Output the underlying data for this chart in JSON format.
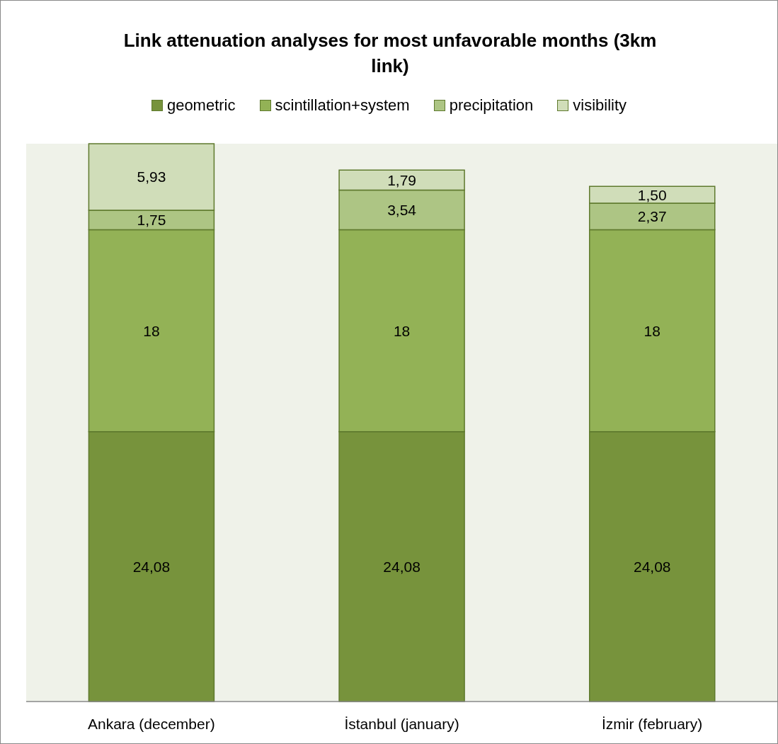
{
  "chart_data": {
    "type": "bar",
    "title": "Link attenuation analyses for most unfavorable months (3km link)",
    "categories": [
      "Ankara (december)",
      "İstanbul (january)",
      "İzmir (february)"
    ],
    "stacked": true,
    "legend": "top",
    "data_labels": true,
    "series": [
      {
        "name": "geometric",
        "color": "#77933c",
        "values": [
          24.08,
          24.08,
          24.08
        ],
        "value_labels": [
          "24,08",
          "24,08",
          "24,08"
        ]
      },
      {
        "name": "scintillation+system",
        "color": "#93b256",
        "values": [
          18,
          18,
          18
        ],
        "value_labels": [
          "18",
          "18",
          "18"
        ]
      },
      {
        "name": "precipitation",
        "color": "#adc584",
        "values": [
          1.75,
          3.54,
          2.37
        ],
        "value_labels": [
          "1,75",
          "3,54",
          "2,37"
        ]
      },
      {
        "name": "visibility",
        "color": "#d0ddb9",
        "values": [
          5.93,
          1.79,
          1.5
        ],
        "value_labels": [
          "5,93",
          "1,79",
          "1,50"
        ]
      }
    ]
  }
}
